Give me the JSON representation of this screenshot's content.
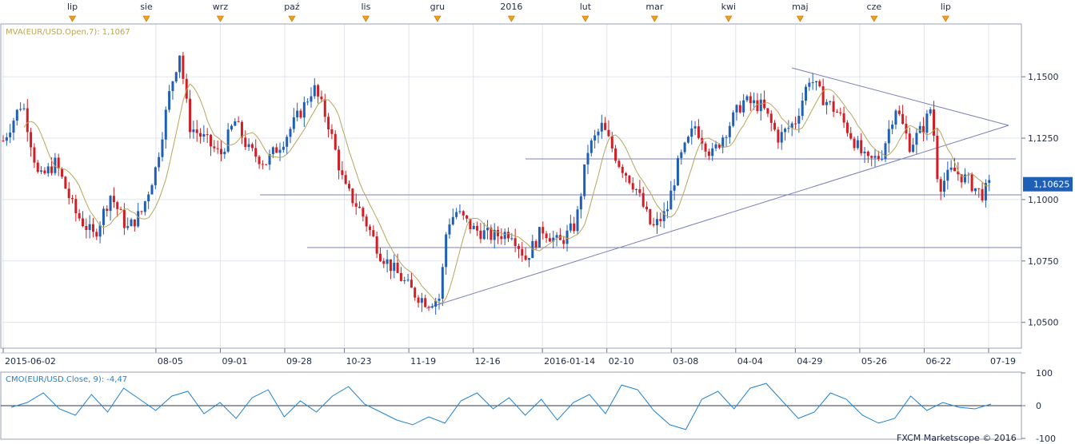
{
  "chart_data": [
    {
      "type": "candlestick",
      "instrument": "EUR/USD",
      "legend": {
        "mva_label": "MVA(EUR/USD.Open,7): 1,1067",
        "mva_color": "#b8a65a"
      },
      "current_price_label": "1,10625",
      "current_price": 1.10625,
      "ylim": [
        1.0395,
        1.1715
      ],
      "y_ticks": [
        "1,0500",
        "1,0750",
        "1,1000",
        "1,1250",
        "1,1500"
      ],
      "y_tick_values": [
        1.05,
        1.075,
        1.1,
        1.125,
        1.15
      ],
      "date_range": [
        "2015-06-02",
        "2016-07-19"
      ],
      "date_labels": [
        "2015-06-02",
        "08-05",
        "09-01",
        "09-28",
        "10-23",
        "11-19",
        "12-16",
        "2016-01-14",
        "02-10",
        "03-08",
        "04-04",
        "04-29",
        "05-26",
        "06-22",
        "07-19"
      ],
      "date_label_days": [
        0,
        64,
        91,
        118,
        143,
        170,
        197,
        226,
        253,
        280,
        307,
        332,
        359,
        386,
        413
      ],
      "top_markers": [
        "lip",
        "sie",
        "wrz",
        "paź",
        "lis",
        "gru",
        "2016",
        "lut",
        "mar",
        "kwi",
        "maj",
        "cze",
        "lip"
      ],
      "top_marker_days": [
        29,
        60,
        91,
        121,
        152,
        182,
        213,
        244,
        273,
        304,
        334,
        365,
        395
      ],
      "up_color": "#1f5fb5",
      "down_color": "#d11e24",
      "price_path": [
        [
          0,
          1.124
        ],
        [
          8,
          1.14
        ],
        [
          15,
          1.108
        ],
        [
          22,
          1.115
        ],
        [
          30,
          1.095
        ],
        [
          38,
          1.085
        ],
        [
          45,
          1.102
        ],
        [
          52,
          1.088
        ],
        [
          58,
          1.095
        ],
        [
          64,
          1.113
        ],
        [
          70,
          1.145
        ],
        [
          74,
          1.16
        ],
        [
          78,
          1.13
        ],
        [
          84,
          1.125
        ],
        [
          91,
          1.118
        ],
        [
          97,
          1.132
        ],
        [
          103,
          1.12
        ],
        [
          110,
          1.115
        ],
        [
          118,
          1.125
        ],
        [
          126,
          1.138
        ],
        [
          130,
          1.146
        ],
        [
          136,
          1.132
        ],
        [
          143,
          1.105
        ],
        [
          150,
          1.095
        ],
        [
          158,
          1.078
        ],
        [
          165,
          1.07
        ],
        [
          172,
          1.062
        ],
        [
          178,
          1.058
        ],
        [
          183,
          1.06
        ],
        [
          186,
          1.09
        ],
        [
          190,
          1.095
        ],
        [
          197,
          1.088
        ],
        [
          205,
          1.085
        ],
        [
          213,
          1.087
        ],
        [
          219,
          1.076
        ],
        [
          226,
          1.088
        ],
        [
          233,
          1.082
        ],
        [
          240,
          1.09
        ],
        [
          245,
          1.12
        ],
        [
          251,
          1.13
        ],
        [
          258,
          1.115
        ],
        [
          265,
          1.105
        ],
        [
          272,
          1.088
        ],
        [
          278,
          1.095
        ],
        [
          283,
          1.115
        ],
        [
          290,
          1.13
        ],
        [
          297,
          1.118
        ],
        [
          304,
          1.13
        ],
        [
          310,
          1.14
        ],
        [
          318,
          1.138
        ],
        [
          325,
          1.125
        ],
        [
          332,
          1.132
        ],
        [
          338,
          1.15
        ],
        [
          343,
          1.142
        ],
        [
          350,
          1.135
        ],
        [
          356,
          1.125
        ],
        [
          362,
          1.115
        ],
        [
          368,
          1.118
        ],
        [
          374,
          1.138
        ],
        [
          380,
          1.122
        ],
        [
          386,
          1.13
        ],
        [
          389,
          1.138
        ],
        [
          392,
          1.105
        ],
        [
          398,
          1.112
        ],
        [
          404,
          1.108
        ],
        [
          410,
          1.102
        ],
        [
          414,
          1.1063
        ]
      ]
    },
    {
      "type": "line",
      "indicator_label": "CMO(EUR/USD.Close, 9): -4,47",
      "indicator_color": "#1e82d2",
      "ylim": [
        -100,
        100
      ],
      "y_ticks": [
        "100",
        "0",
        "-100"
      ],
      "y_tick_values": [
        100,
        0,
        -100
      ],
      "values": [
        -5,
        10,
        40,
        -10,
        -30,
        35,
        -20,
        55,
        20,
        -15,
        30,
        45,
        -25,
        10,
        -40,
        25,
        50,
        -35,
        15,
        -20,
        30,
        60,
        5,
        -20,
        -45,
        -60,
        -35,
        -55,
        15,
        40,
        -10,
        25,
        -30,
        20,
        -45,
        10,
        35,
        -25,
        65,
        50,
        -15,
        -60,
        -75,
        20,
        45,
        -10,
        55,
        70,
        15,
        -40,
        -20,
        40,
        20,
        -30,
        -55,
        -40,
        30,
        -15,
        10,
        -5,
        -10,
        5
      ]
    }
  ],
  "footer": {
    "watermark": "FXCM Marketscope © 2016"
  }
}
